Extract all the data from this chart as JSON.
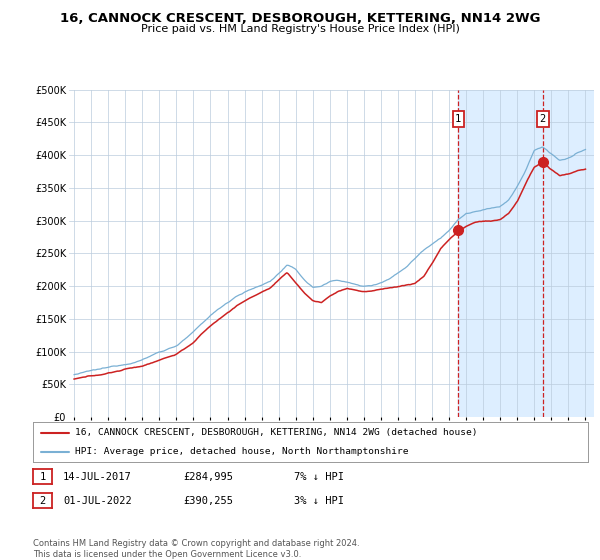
{
  "title": "16, CANNOCK CRESCENT, DESBOROUGH, KETTERING, NN14 2WG",
  "subtitle": "Price paid vs. HM Land Registry's House Price Index (HPI)",
  "legend_line1": "16, CANNOCK CRESCENT, DESBOROUGH, KETTERING, NN14 2WG (detached house)",
  "legend_line2": "HPI: Average price, detached house, North Northamptonshire",
  "footnote": "Contains HM Land Registry data © Crown copyright and database right 2024.\nThis data is licensed under the Open Government Licence v3.0.",
  "annotation1": {
    "label": "1",
    "date": "14-JUL-2017",
    "price": 284995,
    "x_year": 2017.54
  },
  "annotation2": {
    "label": "2",
    "date": "01-JUL-2022",
    "price": 390255,
    "x_year": 2022.5
  },
  "note1_date": "14-JUL-2017",
  "note1_price": "£284,995",
  "note1_hpi": "7% ↓ HPI",
  "note2_date": "01-JUL-2022",
  "note2_price": "£390,255",
  "note2_hpi": "3% ↓ HPI",
  "hpi_color": "#7ab0d4",
  "price_color": "#cc2222",
  "highlight_color": "#ddeeff",
  "grid_color": "#bbccdd",
  "bg_color": "#ffffff",
  "yticks": [
    0,
    50000,
    100000,
    150000,
    200000,
    250000,
    300000,
    350000,
    400000,
    450000,
    500000
  ],
  "xticks": [
    1995,
    1996,
    1997,
    1998,
    1999,
    2000,
    2001,
    2002,
    2003,
    2004,
    2005,
    2006,
    2007,
    2008,
    2009,
    2010,
    2011,
    2012,
    2013,
    2014,
    2015,
    2016,
    2017,
    2018,
    2019,
    2020,
    2021,
    2022,
    2023,
    2024,
    2025
  ],
  "xlim_start": 1994.7,
  "xlim_end": 2025.5,
  "hpi_waypoints": [
    [
      1995.0,
      65000
    ],
    [
      1996.0,
      70000
    ],
    [
      1997.0,
      74000
    ],
    [
      1998.0,
      80000
    ],
    [
      1999.0,
      88000
    ],
    [
      2000.0,
      100000
    ],
    [
      2001.0,
      110000
    ],
    [
      2002.0,
      130000
    ],
    [
      2003.0,
      155000
    ],
    [
      2004.0,
      175000
    ],
    [
      2004.5,
      185000
    ],
    [
      2005.0,
      192000
    ],
    [
      2005.5,
      197000
    ],
    [
      2006.0,
      202000
    ],
    [
      2006.5,
      208000
    ],
    [
      2007.0,
      220000
    ],
    [
      2007.5,
      233000
    ],
    [
      2008.0,
      225000
    ],
    [
      2008.5,
      210000
    ],
    [
      2009.0,
      198000
    ],
    [
      2009.5,
      200000
    ],
    [
      2010.0,
      207000
    ],
    [
      2010.5,
      210000
    ],
    [
      2011.0,
      207000
    ],
    [
      2011.5,
      203000
    ],
    [
      2012.0,
      200000
    ],
    [
      2012.5,
      202000
    ],
    [
      2013.0,
      207000
    ],
    [
      2013.5,
      213000
    ],
    [
      2014.0,
      222000
    ],
    [
      2014.5,
      232000
    ],
    [
      2015.0,
      245000
    ],
    [
      2015.5,
      258000
    ],
    [
      2016.0,
      268000
    ],
    [
      2016.5,
      278000
    ],
    [
      2017.0,
      290000
    ],
    [
      2017.5,
      305000
    ],
    [
      2018.0,
      315000
    ],
    [
      2018.5,
      318000
    ],
    [
      2019.0,
      320000
    ],
    [
      2019.5,
      322000
    ],
    [
      2020.0,
      325000
    ],
    [
      2020.5,
      335000
    ],
    [
      2021.0,
      355000
    ],
    [
      2021.5,
      380000
    ],
    [
      2022.0,
      410000
    ],
    [
      2022.5,
      415000
    ],
    [
      2023.0,
      405000
    ],
    [
      2023.5,
      395000
    ],
    [
      2024.0,
      398000
    ],
    [
      2024.5,
      405000
    ],
    [
      2025.0,
      410000
    ]
  ],
  "price_waypoints": [
    [
      1995.0,
      58000
    ],
    [
      1996.0,
      62000
    ],
    [
      1997.0,
      67000
    ],
    [
      1998.0,
      73000
    ],
    [
      1999.0,
      78000
    ],
    [
      2000.0,
      88000
    ],
    [
      2001.0,
      97000
    ],
    [
      2002.0,
      115000
    ],
    [
      2003.0,
      140000
    ],
    [
      2004.0,
      160000
    ],
    [
      2004.5,
      170000
    ],
    [
      2005.0,
      178000
    ],
    [
      2005.5,
      185000
    ],
    [
      2006.0,
      192000
    ],
    [
      2006.5,
      198000
    ],
    [
      2007.0,
      210000
    ],
    [
      2007.5,
      220000
    ],
    [
      2008.0,
      205000
    ],
    [
      2008.5,
      190000
    ],
    [
      2009.0,
      178000
    ],
    [
      2009.5,
      175000
    ],
    [
      2010.0,
      185000
    ],
    [
      2010.5,
      192000
    ],
    [
      2011.0,
      197000
    ],
    [
      2011.5,
      195000
    ],
    [
      2012.0,
      192000
    ],
    [
      2012.5,
      193000
    ],
    [
      2013.0,
      195000
    ],
    [
      2013.5,
      198000
    ],
    [
      2014.0,
      200000
    ],
    [
      2014.5,
      202000
    ],
    [
      2015.0,
      205000
    ],
    [
      2015.5,
      215000
    ],
    [
      2016.0,
      235000
    ],
    [
      2016.5,
      258000
    ],
    [
      2017.0,
      272000
    ],
    [
      2017.54,
      284995
    ],
    [
      2018.0,
      292000
    ],
    [
      2018.5,
      298000
    ],
    [
      2019.0,
      300000
    ],
    [
      2019.5,
      300000
    ],
    [
      2020.0,
      302000
    ],
    [
      2020.5,
      312000
    ],
    [
      2021.0,
      330000
    ],
    [
      2021.5,
      358000
    ],
    [
      2022.0,
      382000
    ],
    [
      2022.5,
      390255
    ],
    [
      2023.0,
      378000
    ],
    [
      2023.5,
      368000
    ],
    [
      2024.0,
      370000
    ],
    [
      2024.5,
      375000
    ],
    [
      2025.0,
      378000
    ]
  ]
}
